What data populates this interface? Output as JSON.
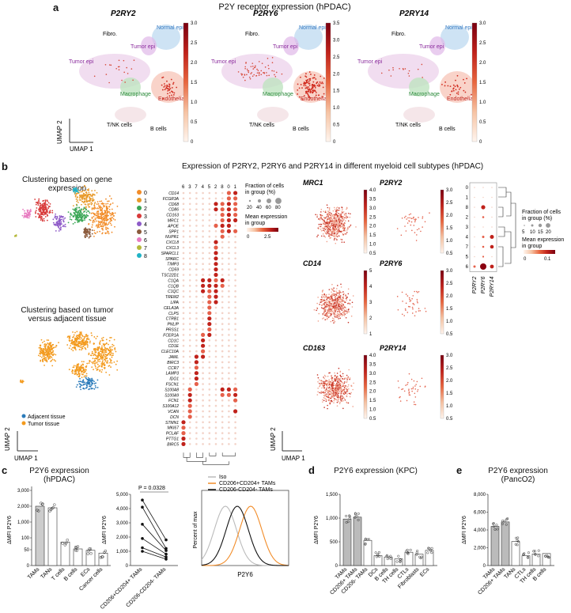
{
  "panel_a": {
    "label": "a",
    "title": "P2Y receptor expression (hPDAC)",
    "umap": [
      {
        "gene": "P2RY2",
        "cmax": 3.0,
        "ticks": [
          "3.0",
          "2.5",
          "2.0",
          "1.5",
          "1.0",
          "0.5",
          "0"
        ]
      },
      {
        "gene": "P2RY6",
        "cmax": 3.5,
        "ticks": [
          "3.5",
          "3.0",
          "2.5",
          "2.0",
          "1.5",
          "1.0",
          "0.5",
          "0"
        ]
      },
      {
        "gene": "P2RY14",
        "cmax": 3.0,
        "ticks": [
          "3.0",
          "2.5",
          "2.0",
          "1.5",
          "1.0",
          "0.5",
          "0"
        ]
      }
    ],
    "cluster_labels": {
      "fibro": "Fibro.",
      "normal_epi": "Normal epi",
      "tumor_epi": "Tumor epi",
      "macrophage": "Macrophage",
      "endothelial": "Endothelial",
      "tnk": "T/NK cells",
      "b_cells": "B cells"
    },
    "axis_y": "UMAP 2",
    "axis_x": "UMAP 1"
  },
  "panel_b": {
    "label": "b",
    "title": "Expression of P2RY2, P2RY6 and P2RY14 in different myeloid cell subtypes (hPDAC)",
    "cluster_title_1": "Clustering based on gene expression",
    "cluster_title_2": "Clustering based on tumor versus adjacent tissue",
    "cluster_legend": [
      {
        "label": "0",
        "color": "#f28c28"
      },
      {
        "label": "1",
        "color": "#e89a2a"
      },
      {
        "label": "2",
        "color": "#3aa655"
      },
      {
        "label": "3",
        "color": "#d83a3a"
      },
      {
        "label": "4",
        "color": "#8e5bc8"
      },
      {
        "label": "5",
        "color": "#8b5a3c"
      },
      {
        "label": "6",
        "color": "#e87ac0"
      },
      {
        "label": "7",
        "color": "#b5b83a"
      },
      {
        "label": "8",
        "color": "#21b3c6"
      }
    ],
    "tissue_legend": [
      {
        "label": "Adjacent tissue",
        "color": "#2b7bba"
      },
      {
        "label": "Tumor tissue",
        "color": "#f39a1d"
      }
    ],
    "dotplot_cols": [
      "6",
      "3",
      "7",
      "4",
      "5",
      "2",
      "8",
      "0",
      "1"
    ],
    "dotplot_genes": [
      "CD14",
      "FCGR3A",
      "CD68",
      "CD86",
      "CD163",
      "MRC1",
      "APOE",
      "SPP1",
      "NUPR1",
      "CXCL8",
      "CXCL3",
      "SPARCL1",
      "SPARC",
      "TIMP3",
      "CD59",
      "TSC22D1",
      "C1QA",
      "C1QB",
      "C1QC",
      "TREM2",
      "LIPA",
      "CELA3A",
      "CLPS",
      "CTRB1",
      "PNLIP",
      "PRSS1",
      "FCER1A",
      "CD1C",
      "CD1E",
      "CLEC10A",
      "JAML",
      "BIRC3",
      "CCR7",
      "LAMP3",
      "IDO1",
      "FSCN1",
      "S100A8",
      "S100A9",
      "FCN1",
      "S100A12",
      "VCAN",
      "DCN",
      "STMN1",
      "MKI67",
      "PCLAF",
      "PTTG1",
      "BIRC5"
    ],
    "dot_legend_title": "Fraction of cells in group (%)",
    "dot_legend_sizes": [
      "20",
      "40",
      "60",
      "80"
    ],
    "mean_legend_title": "Mean expression in group",
    "mean_legend_ticks": [
      "0",
      "2.5"
    ],
    "feature_maps": [
      {
        "gene": "MRC1",
        "ticks": [
          "4.0",
          "3.5",
          "3.0",
          "2.5",
          "2.0",
          "1.5",
          "1.0",
          "0.5"
        ]
      },
      {
        "gene": "P2RY2",
        "ticks": [
          "3.0",
          "2.5",
          "2.0",
          "1.5",
          "1.0",
          "0.5"
        ]
      },
      {
        "gene": "CD14",
        "ticks": [
          "5",
          "4",
          "3",
          "2",
          "1"
        ]
      },
      {
        "gene": "P2RY6",
        "ticks": [
          "3.0",
          "2.5",
          "2.0",
          "1.5",
          "1.0",
          "0.5"
        ]
      },
      {
        "gene": "CD163",
        "ticks": [
          "4.0",
          "3.5",
          "3.0",
          "2.5",
          "2.0",
          "1.5",
          "1.0",
          "0.5"
        ]
      },
      {
        "gene": "P2RY14",
        "ticks": [
          "3.0",
          "2.5",
          "2.0",
          "1.5",
          "1.0",
          "0.5"
        ]
      }
    ],
    "small_dot": {
      "rows": [
        "0",
        "1",
        "8",
        "2",
        "3",
        "4",
        "7",
        "5",
        "6"
      ],
      "cols": [
        "P2RY2",
        "P2RY6",
        "P2RY14"
      ],
      "size_title": "Fraction of cells in group (%)",
      "sizes": [
        "5",
        "10",
        "15",
        "20"
      ],
      "mean_title": "Mean expression in group",
      "mean_ticks": [
        "0",
        "0.1"
      ]
    },
    "axis_y": "UMAP 2",
    "axis_x": "UMAP 1"
  },
  "panel_c": {
    "label": "c",
    "bar_title": "P2Y6 expression (hPDAC)",
    "ylabel": "ΔMFI P2Y6",
    "bar_chart": {
      "categories": [
        "TAMs",
        "TANs",
        "T cells",
        "B cells",
        "ECs",
        "Cancer cells"
      ],
      "values": [
        2000,
        1900,
        85,
        60,
        55,
        45
      ],
      "yticks": [
        "3,000",
        "2,000",
        "1,000",
        "100",
        "50",
        "0"
      ]
    },
    "pair_chart": {
      "categories": [
        "CD206+CD204+ TAMs",
        "CD206-CD204- TAMs"
      ],
      "pvalue": "P = 0.0328",
      "yticks": [
        "5,000",
        "4,000",
        "3,000",
        "2,000",
        "1,000",
        "0"
      ],
      "pairs": [
        [
          4600,
          1800
        ],
        [
          4100,
          1200
        ],
        [
          2900,
          1050
        ],
        [
          1900,
          800
        ],
        [
          1250,
          600
        ],
        [
          1000,
          450
        ]
      ]
    },
    "hist": {
      "legend": [
        "Iso",
        "CD206+CD204+ TAMs",
        "CD206-CD204- TAMs"
      ],
      "colors": [
        "#bbbbbb",
        "#f28c28",
        "#111111"
      ],
      "ylabel": "Percent of max",
      "xlabel": "P2Y6"
    }
  },
  "panel_d": {
    "label": "d",
    "title": "P2Y6 expression (KPC)",
    "ylabel": "ΔMFI P2Y6",
    "yticks": [
      "1,500",
      "1,000",
      "500",
      "0"
    ],
    "categories": [
      "TAMs",
      "CD206+ TAMs",
      "CD206- TAMs",
      "DCs",
      "B cells",
      "TH cells",
      "CTLs",
      "Fibroblasts",
      "ECs"
    ],
    "values": [
      980,
      1020,
      530,
      210,
      180,
      140,
      280,
      240,
      320
    ]
  },
  "panel_e": {
    "label": "e",
    "title": "P2Y6 expression (PancO2)",
    "ylabel": "ΔMFI P2Y6",
    "yticks": [
      "8,000",
      "6,000",
      "4,000",
      "2,000",
      "0"
    ],
    "categories": [
      "TAMs",
      "CD206+ TAMs",
      "TANs",
      "CTLs",
      "TH cells",
      "B cells"
    ],
    "values": [
      4400,
      4900,
      2700,
      1100,
      1300,
      1350
    ]
  }
}
